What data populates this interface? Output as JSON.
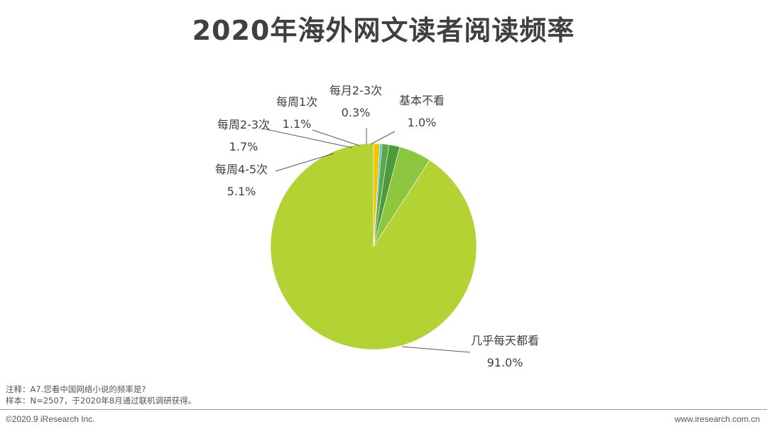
{
  "page": {
    "title": "2020年海外网文读者阅读频率",
    "note1": "注释：A7.您看中国网络小说的频率是?",
    "note2": "样本：N=2507，于2020年8月通过联机调研获得。",
    "copyright": "©2020.9 iResearch Inc.",
    "website": "www.iresearch.com.cn"
  },
  "chart_data": {
    "type": "pie",
    "title": "2020年海外网文读者阅读频率",
    "categories": [
      "几乎每天都看",
      "每周4-5次",
      "每周2-3次",
      "每周1次",
      "每月2-3次",
      "基本不看"
    ],
    "values": [
      91.0,
      5.1,
      1.7,
      1.1,
      0.3,
      1.0
    ],
    "value_labels": [
      "91.0%",
      "5.1%",
      "1.7%",
      "1.1%",
      "0.3%",
      "1.0%"
    ],
    "colors": [
      "#b3d334",
      "#8dc63f",
      "#4e9a3a",
      "#5aa84a",
      "#29c5f6",
      "#f5c400"
    ],
    "start_angle_deg": 0,
    "direction": "counterclockwise",
    "legend": "none"
  }
}
